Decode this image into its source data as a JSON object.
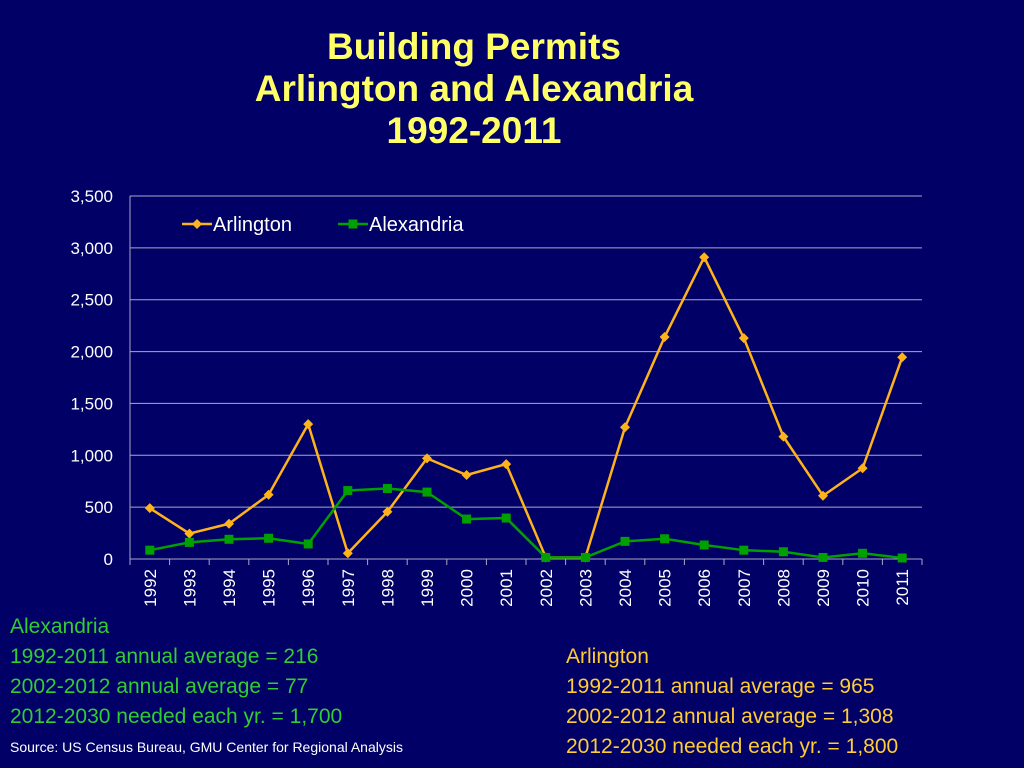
{
  "chart_data": {
    "type": "line",
    "title_lines": [
      "Building Permits",
      "Arlington and Alexandria",
      "1992-2011"
    ],
    "categories": [
      "1992",
      "1993",
      "1994",
      "1995",
      "1996",
      "1997",
      "1998",
      "1999",
      "2000",
      "2001",
      "2002",
      "2003",
      "2004",
      "2005",
      "2006",
      "2007",
      "2008",
      "2009",
      "2010",
      "2011"
    ],
    "series": [
      {
        "name": "Arlington",
        "color": "#ffb31a",
        "marker": "diamond",
        "values": [
          490,
          245,
          340,
          620,
          1300,
          55,
          455,
          970,
          810,
          915,
          15,
          15,
          1270,
          2140,
          2910,
          2130,
          1180,
          610,
          875,
          1945
        ]
      },
      {
        "name": "Alexandria",
        "color": "#00a000",
        "marker": "square",
        "values": [
          85,
          160,
          190,
          200,
          145,
          660,
          680,
          645,
          385,
          395,
          15,
          15,
          170,
          195,
          135,
          85,
          70,
          15,
          55,
          10
        ]
      }
    ],
    "ylim": [
      0,
      3500
    ],
    "yticks": [
      0,
      500,
      1000,
      1500,
      2000,
      2500,
      3000,
      3500
    ],
    "ytick_labels": [
      "0",
      "500",
      "1,000",
      "1,500",
      "2,000",
      "2,500",
      "3,000",
      "3,500"
    ],
    "grid": true,
    "legend_position": "top-left"
  },
  "notes": {
    "alexandria": [
      "Alexandria",
      "1992-2011 annual average  = 216",
      "2002-2012 annual average = 77",
      "2012-2030 needed each yr. = 1,700"
    ],
    "arlington": [
      "Arlington",
      "1992-2011 annual average  = 965",
      "2002-2012 annual average = 1,308",
      "2012-2030 needed each yr. = 1,800"
    ]
  },
  "source": "Source: US Census Bureau, GMU Center for Regional Analysis"
}
